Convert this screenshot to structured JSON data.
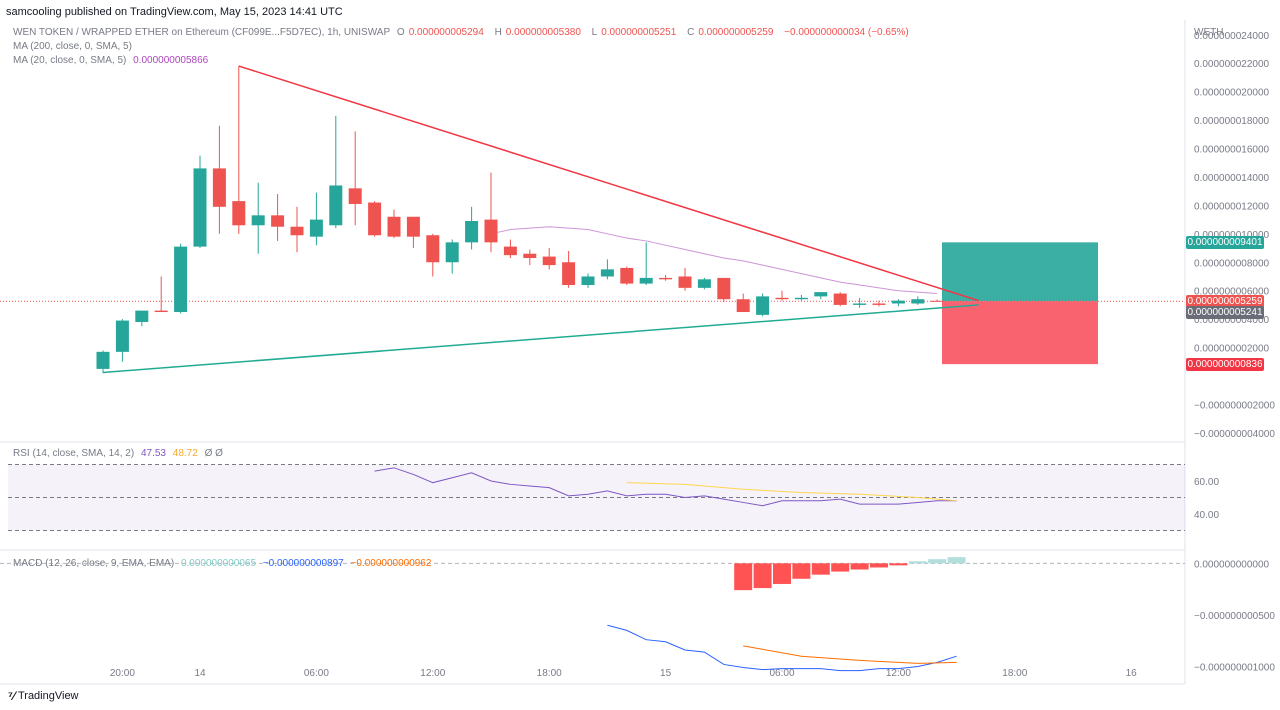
{
  "header": {
    "published": "samcooling published on TradingView.com, May 15, 2023 14:41 UTC",
    "symbol": "WEN TOKEN / WRAPPED ETHER on Ethereum (CF099E...F5D7EC), 1h, UNISWAP",
    "ohlc": [
      {
        "k": "O",
        "v": "0.000000005294"
      },
      {
        "k": "H",
        "v": "0.000000005380"
      },
      {
        "k": "L",
        "v": "0.000000005251"
      },
      {
        "k": "C",
        "v": "0.000000005259"
      }
    ],
    "change": "−0.000000000034 (−0.65%)",
    "ma200_label": "MA (200, close, 0, SMA, 5)",
    "ma20_label": "MA (20, close, 0, SMA, 5)",
    "ma20_value": "0.000000005866",
    "rsi_label": "RSI (14, close, SMA, 14, 2)",
    "rsi_value": "47.53",
    "rsi_ma_value": "48.72",
    "rsi_extra": "Ø Ø",
    "macd_label": "MACD (12, 26, close, 9, EMA, EMA)",
    "macd_hist_value": "0.000000000065",
    "macd_value": "−0.000000000897",
    "macd_signal_value": "−0.000000000962"
  },
  "footer": {
    "brand": "TradingView"
  },
  "colors": {
    "up": "#26a69a",
    "down": "#ef5350",
    "ma20": "#ce93d8",
    "rsi": "#7e57c2",
    "rsi_ma": "#ffd54f",
    "macd": "#2962ff",
    "signal": "#ff6d00",
    "tp": "#26a69a",
    "sl": "#f7525f"
  },
  "chart_data": [
    {
      "type": "candlestick",
      "currency": "WETH",
      "x_ticks": [
        "20:00",
        "14",
        "06:00",
        "12:00",
        "18:00",
        "15",
        "06:00",
        "12:00",
        "18:00",
        "16"
      ],
      "y_ticks": [
        "0.000000024000",
        "0.000000022000",
        "0.000000020000",
        "0.000000018000",
        "0.000000016000",
        "0.000000014000",
        "0.000000012000",
        "0.000000010000",
        "0.000000008000",
        "0.000000006000",
        "0.000000004000",
        "0.000000002000",
        "−0.000000002000",
        "−0.000000004000"
      ],
      "ylim": [
        -4.5e-09,
        2.56e-08
      ],
      "candles": [
        {
          "o": 5e-10,
          "h": 1.8e-09,
          "l": 2e-10,
          "c": 1.7e-09
        },
        {
          "o": 1.7e-09,
          "h": 4e-09,
          "l": 1e-09,
          "c": 3.9e-09
        },
        {
          "o": 3.8e-09,
          "h": 4.5e-09,
          "l": 3.5e-09,
          "c": 4.6e-09
        },
        {
          "o": 4.6e-09,
          "h": 7e-09,
          "l": 4.5e-09,
          "c": 4.5e-09
        },
        {
          "o": 4.5e-09,
          "h": 9.3e-09,
          "l": 4.4e-09,
          "c": 9.1e-09
        },
        {
          "o": 9.1e-09,
          "h": 1.55e-08,
          "l": 9e-09,
          "c": 1.46e-08
        },
        {
          "o": 1.46e-08,
          "h": 1.76e-08,
          "l": 1e-08,
          "c": 1.19e-08
        },
        {
          "o": 1.23e-08,
          "h": 2.18e-08,
          "l": 1e-08,
          "c": 1.06e-08
        },
        {
          "o": 1.06e-08,
          "h": 1.36e-08,
          "l": 8.6e-09,
          "c": 1.13e-08
        },
        {
          "o": 1.13e-08,
          "h": 1.28e-08,
          "l": 9.5e-09,
          "c": 1.05e-08
        },
        {
          "o": 1.05e-08,
          "h": 1.19e-08,
          "l": 8.7e-09,
          "c": 9.9e-09
        },
        {
          "o": 9.8e-09,
          "h": 1.29e-08,
          "l": 9.2e-09,
          "c": 1.1e-08
        },
        {
          "o": 1.06e-08,
          "h": 1.83e-08,
          "l": 1.04e-08,
          "c": 1.34e-08
        },
        {
          "o": 1.32e-08,
          "h": 1.72e-08,
          "l": 1.06e-08,
          "c": 1.21e-08
        },
        {
          "o": 1.22e-08,
          "h": 1.23e-08,
          "l": 9.8e-09,
          "c": 9.9e-09
        },
        {
          "o": 1.12e-08,
          "h": 1.17e-08,
          "l": 9.7e-09,
          "c": 9.8e-09
        },
        {
          "o": 1.12e-08,
          "h": 1.12e-08,
          "l": 9e-09,
          "c": 9.8e-09
        },
        {
          "o": 9.9e-09,
          "h": 1e-08,
          "l": 7e-09,
          "c": 8e-09
        },
        {
          "o": 8e-09,
          "h": 9.6e-09,
          "l": 7.2e-09,
          "c": 9.4e-09
        },
        {
          "o": 9.4e-09,
          "h": 1.19e-08,
          "l": 8.9e-09,
          "c": 1.09e-08
        },
        {
          "o": 1.1e-08,
          "h": 1.43e-08,
          "l": 8.7e-09,
          "c": 9.4e-09
        },
        {
          "o": 9.1e-09,
          "h": 9.6e-09,
          "l": 8.3e-09,
          "c": 8.5e-09
        },
        {
          "o": 8.6e-09,
          "h": 8.9e-09,
          "l": 7.8e-09,
          "c": 8.3e-09
        },
        {
          "o": 8.4e-09,
          "h": 9e-09,
          "l": 7.5e-09,
          "c": 7.8e-09
        },
        {
          "o": 8e-09,
          "h": 8.8e-09,
          "l": 6.2e-09,
          "c": 6.4e-09
        },
        {
          "o": 6.4e-09,
          "h": 7.2e-09,
          "l": 6.2e-09,
          "c": 7e-09
        },
        {
          "o": 7e-09,
          "h": 8.2e-09,
          "l": 6.8e-09,
          "c": 7.5e-09
        },
        {
          "o": 7.6e-09,
          "h": 7.7e-09,
          "l": 6.4e-09,
          "c": 6.5e-09
        },
        {
          "o": 6.5e-09,
          "h": 9.4e-09,
          "l": 6.4e-09,
          "c": 6.9e-09
        },
        {
          "o": 6.9e-09,
          "h": 7.1e-09,
          "l": 6.7e-09,
          "c": 6.8e-09
        },
        {
          "o": 7e-09,
          "h": 7.6e-09,
          "l": 6e-09,
          "c": 6.2e-09
        },
        {
          "o": 6.2e-09,
          "h": 6.9e-09,
          "l": 6.1e-09,
          "c": 6.8e-09
        },
        {
          "o": 6.9e-09,
          "h": 6.9e-09,
          "l": 5.2e-09,
          "c": 5.4e-09
        },
        {
          "o": 5.4e-09,
          "h": 5.8e-09,
          "l": 4.8e-09,
          "c": 4.5e-09
        },
        {
          "o": 4.3e-09,
          "h": 5.8e-09,
          "l": 4.2e-09,
          "c": 5.6e-09
        },
        {
          "o": 5.5e-09,
          "h": 6e-09,
          "l": 5.3e-09,
          "c": 5.4e-09
        },
        {
          "o": 5.4e-09,
          "h": 5.7e-09,
          "l": 5.3e-09,
          "c": 5.5e-09
        },
        {
          "o": 5.6e-09,
          "h": 5.9e-09,
          "l": 5.4e-09,
          "c": 5.9e-09
        },
        {
          "o": 5.8e-09,
          "h": 5.9e-09,
          "l": 4.9e-09,
          "c": 5e-09
        },
        {
          "o": 5e-09,
          "h": 5.5e-09,
          "l": 4.8e-09,
          "c": 5.1e-09
        },
        {
          "o": 5.1e-09,
          "h": 5.3e-09,
          "l": 4.9e-09,
          "c": 5e-09
        },
        {
          "o": 5.1e-09,
          "h": 5.4e-09,
          "l": 4.9e-09,
          "c": 5.3e-09
        },
        {
          "o": 5.1e-09,
          "h": 5.6e-09,
          "l": 5e-09,
          "c": 5.4e-09
        },
        {
          "o": 5.29e-09,
          "h": 5.38e-09,
          "l": 5.25e-09,
          "c": 5.26e-09
        }
      ],
      "ma20": [
        1e-08,
        1.03e-08,
        1.04e-08,
        1.05e-08,
        1.04e-08,
        1.03e-08,
        1e-08,
        9.7e-09,
        9.5e-09,
        9.2e-09,
        8.9e-09,
        8.6e-09,
        8.3e-09,
        8.1e-09,
        7.8e-09,
        7.5e-09,
        7.2e-09,
        6.9e-09,
        6.6e-09,
        6.4e-09,
        6.2e-09,
        6e-09,
        5.9e-09,
        5.8e-09
      ],
      "ma20_start_index": 20,
      "trendlines": [
        {
          "name": "resistance",
          "from": {
            "i": 7,
            "p": 2.18e-08
          },
          "to": {
            "i": 44,
            "p": 5.3e-09
          }
        },
        {
          "name": "support",
          "from": {
            "i": 0,
            "p": 2.5e-10
          },
          "to": {
            "i": 44,
            "p": 5e-09
          }
        }
      ],
      "position": {
        "entry": 5.259e-09,
        "target": 9.401e-09,
        "stop": 8.36e-10
      },
      "price_labels": [
        {
          "value": "0.000000009401",
          "price": 9.401e-09,
          "color": "#26a69a"
        },
        {
          "value": "0.000000005259",
          "price": 5.259e-09,
          "color": "#ef5350"
        },
        {
          "value": "0.000000005241",
          "price": 4.5e-09,
          "color": "#6a6d78"
        },
        {
          "value": "0.000000000836",
          "price": 8.36e-10,
          "color": "#f23645"
        }
      ]
    },
    {
      "type": "line",
      "title": "RSI",
      "ylim": [
        23,
        77
      ],
      "y_ticks": [
        "60.00",
        "40.00"
      ],
      "bands": [
        70,
        30
      ],
      "mid": 50,
      "rsi": [
        [
          14,
          66
        ],
        [
          15,
          68
        ],
        [
          16,
          64
        ],
        [
          17,
          59
        ],
        [
          18,
          62
        ],
        [
          19,
          65
        ],
        [
          20,
          60
        ],
        [
          21,
          58
        ],
        [
          22,
          57
        ],
        [
          23,
          56
        ],
        [
          24,
          51
        ],
        [
          25,
          52
        ],
        [
          26,
          54
        ],
        [
          27,
          51
        ],
        [
          28,
          52
        ],
        [
          29,
          52
        ],
        [
          30,
          50
        ],
        [
          31,
          51
        ],
        [
          32,
          49
        ],
        [
          33,
          47
        ],
        [
          34,
          45
        ],
        [
          35,
          48
        ],
        [
          36,
          48
        ],
        [
          37,
          48
        ],
        [
          38,
          49
        ],
        [
          39,
          46
        ],
        [
          40,
          46
        ],
        [
          41,
          46
        ],
        [
          42,
          47
        ],
        [
          43,
          48
        ],
        [
          44,
          48
        ]
      ],
      "rsi_ma": [
        [
          27,
          59
        ],
        [
          30,
          58
        ],
        [
          33,
          55
        ],
        [
          36,
          53
        ],
        [
          39,
          52
        ],
        [
          42,
          50
        ],
        [
          44,
          48
        ]
      ]
    },
    {
      "type": "bar",
      "title": "MACD",
      "ylim": [
        -1.15e-09,
        1e-10
      ],
      "y_ticks": [
        "0.000000000000",
        "−0.000000000500",
        "−0.000000001000"
      ],
      "histogram": [
        [
          33,
          -2.6e-10
        ],
        [
          34,
          -2.4e-10
        ],
        [
          35,
          -2e-10
        ],
        [
          36,
          -1.5e-10
        ],
        [
          37,
          -1.1e-10
        ],
        [
          38,
          -8e-11
        ],
        [
          39,
          -6e-11
        ],
        [
          40,
          -4e-11
        ],
        [
          41,
          -2e-11
        ],
        [
          42,
          2e-11
        ],
        [
          43,
          4e-11
        ],
        [
          44,
          6e-11
        ]
      ],
      "macd": [
        [
          26,
          -6e-10
        ],
        [
          27,
          -6.5e-10
        ],
        [
          28,
          -7.4e-10
        ],
        [
          29,
          -7.6e-10
        ],
        [
          30,
          -8.4e-10
        ],
        [
          31,
          -8.6e-10
        ],
        [
          32,
          -9.8e-10
        ],
        [
          33,
          -1.01e-09
        ],
        [
          34,
          -1.03e-09
        ],
        [
          35,
          -1.02e-09
        ],
        [
          36,
          -1.02e-09
        ],
        [
          37,
          -1.02e-09
        ],
        [
          38,
          -1.04e-09
        ],
        [
          39,
          -1.04e-09
        ],
        [
          40,
          -1.02e-09
        ],
        [
          41,
          -1.02e-09
        ],
        [
          42,
          -1e-09
        ],
        [
          43,
          -9.6e-10
        ],
        [
          44,
          -9e-10
        ]
      ],
      "signal": [
        [
          33,
          -8e-10
        ],
        [
          36,
          -9e-10
        ],
        [
          39,
          -9.4e-10
        ],
        [
          42,
          -9.7e-10
        ],
        [
          44,
          -9.6e-10
        ]
      ]
    }
  ]
}
